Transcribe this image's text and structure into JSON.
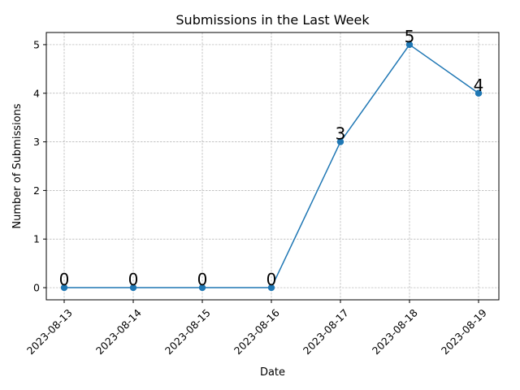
{
  "chart_data": {
    "type": "line",
    "title": "Submissions in the Last Week",
    "xlabel": "Date",
    "ylabel": "Number of Submissions",
    "categories": [
      "2023-08-13",
      "2023-08-14",
      "2023-08-15",
      "2023-08-16",
      "2023-08-17",
      "2023-08-18",
      "2023-08-19"
    ],
    "series": [
      {
        "name": "Submissions",
        "values": [
          0,
          0,
          0,
          0,
          3,
          5,
          4
        ],
        "color": "#1f77b4",
        "marker": "circle"
      }
    ],
    "yticks": [
      0,
      1,
      2,
      3,
      4,
      5
    ],
    "ylim": [
      -0.25,
      5.25
    ],
    "grid": true,
    "data_labels": true
  }
}
